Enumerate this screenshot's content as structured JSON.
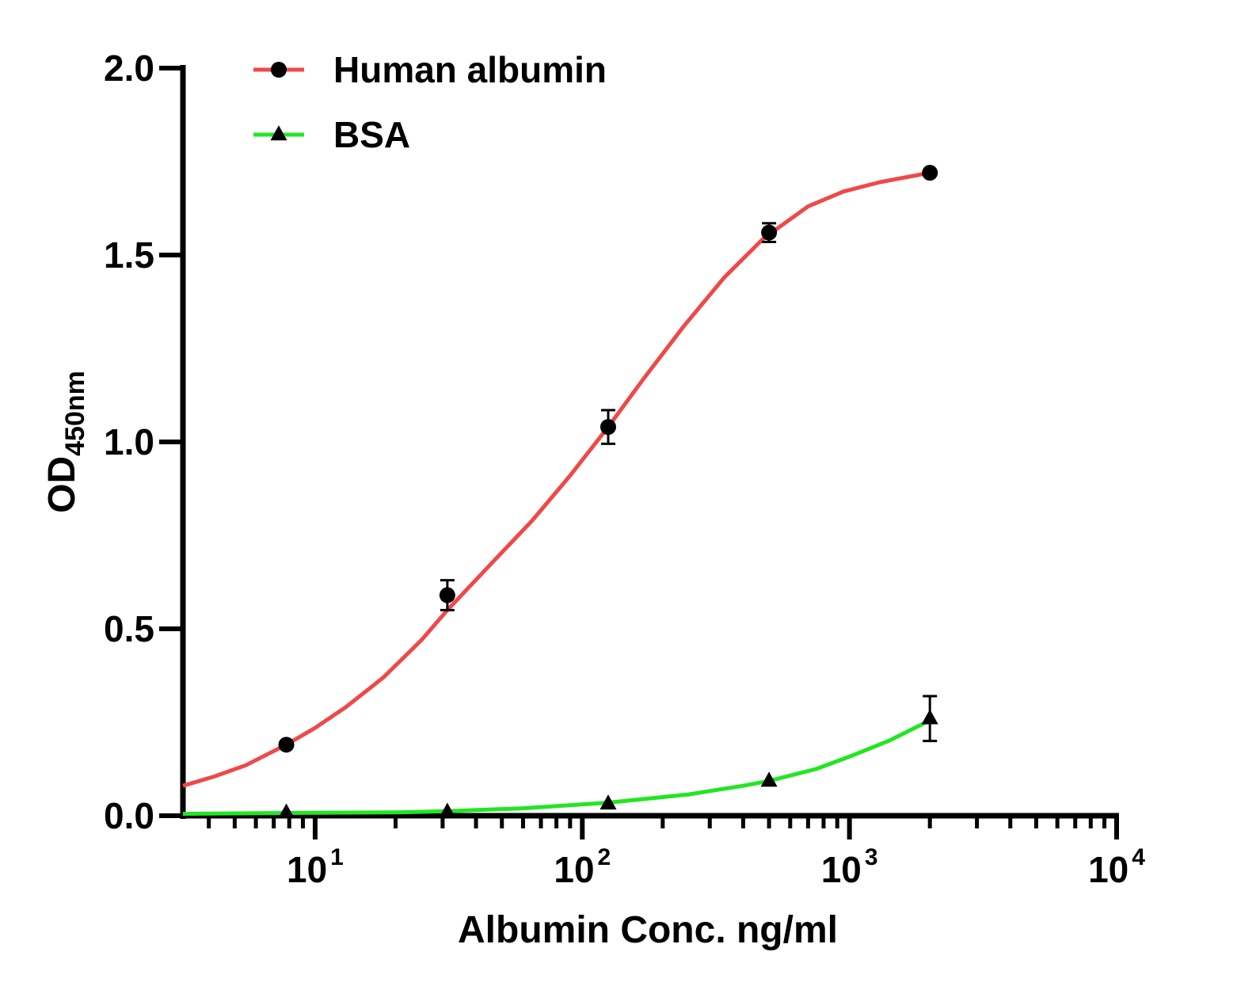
{
  "chart_data": {
    "type": "line",
    "x_scale": "log",
    "xlim": [
      3.2,
      10000
    ],
    "ylim": [
      0,
      2.0
    ],
    "xlabel": "Albumin Conc. ng/ml",
    "ylabel": {
      "main": "OD",
      "subscript": "450nm"
    },
    "y_ticks": [
      {
        "value": 0.0,
        "label": "0.0"
      },
      {
        "value": 0.5,
        "label": "0.5"
      },
      {
        "value": 1.0,
        "label": "1.0"
      },
      {
        "value": 1.5,
        "label": "1.5"
      },
      {
        "value": 2.0,
        "label": "2.0"
      }
    ],
    "x_ticks": [
      {
        "value": 10,
        "base": "10",
        "exp": "1"
      },
      {
        "value": 100,
        "base": "10",
        "exp": "2"
      },
      {
        "value": 1000,
        "base": "10",
        "exp": "3"
      },
      {
        "value": 10000,
        "base": "10",
        "exp": "4"
      }
    ],
    "grid": false,
    "legend_position": "top-left",
    "series": [
      {
        "name": "Human albumin",
        "color": "#f04848",
        "marker": "circle",
        "points": [
          {
            "x": 7.8,
            "y": 0.19,
            "err": 0.0
          },
          {
            "x": 31.25,
            "y": 0.59,
            "err": 0.04
          },
          {
            "x": 125,
            "y": 1.04,
            "err": 0.045
          },
          {
            "x": 500,
            "y": 1.56,
            "err": 0.025
          },
          {
            "x": 2000,
            "y": 1.72,
            "err": 0.0
          }
        ],
        "curve": [
          [
            3.2,
            0.08
          ],
          [
            4.2,
            0.105
          ],
          [
            5.5,
            0.135
          ],
          [
            7.8,
            0.19
          ],
          [
            10,
            0.235
          ],
          [
            13,
            0.29
          ],
          [
            18,
            0.37
          ],
          [
            25,
            0.47
          ],
          [
            31.25,
            0.55
          ],
          [
            45,
            0.67
          ],
          [
            65,
            0.79
          ],
          [
            90,
            0.91
          ],
          [
            125,
            1.04
          ],
          [
            170,
            1.17
          ],
          [
            240,
            1.31
          ],
          [
            340,
            1.44
          ],
          [
            470,
            1.54
          ],
          [
            500,
            1.555
          ],
          [
            700,
            1.63
          ],
          [
            950,
            1.67
          ],
          [
            1300,
            1.695
          ],
          [
            2000,
            1.72
          ]
        ]
      },
      {
        "name": "BSA",
        "color": "#22e622",
        "marker": "triangle",
        "points": [
          {
            "x": 7.8,
            "y": 0.008,
            "err": 0.0
          },
          {
            "x": 31.25,
            "y": 0.01,
            "err": 0.0
          },
          {
            "x": 125,
            "y": 0.032,
            "err": 0.0
          },
          {
            "x": 500,
            "y": 0.093,
            "err": 0.0
          },
          {
            "x": 2000,
            "y": 0.26,
            "err": 0.06
          }
        ],
        "curve": [
          [
            3.2,
            0.005
          ],
          [
            10,
            0.008
          ],
          [
            20,
            0.009
          ],
          [
            31.25,
            0.012
          ],
          [
            60,
            0.02
          ],
          [
            125,
            0.035
          ],
          [
            250,
            0.057
          ],
          [
            400,
            0.08
          ],
          [
            500,
            0.093
          ],
          [
            750,
            0.125
          ],
          [
            1000,
            0.158
          ],
          [
            1400,
            0.2
          ],
          [
            2000,
            0.255
          ]
        ]
      }
    ]
  }
}
